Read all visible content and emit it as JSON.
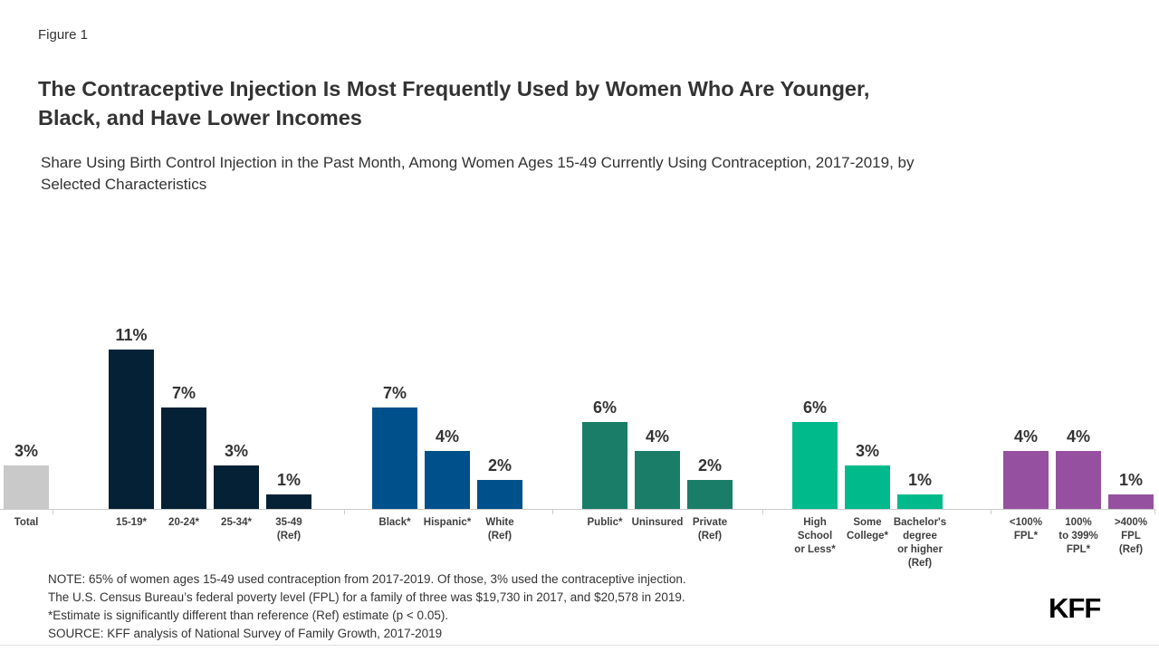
{
  "figure_label": "Figure 1",
  "title_lines": [
    "The Contraceptive Injection Is Most Frequently Used by Women Who Are Younger,",
    "Black, and Have Lower Incomes"
  ],
  "subtitle_lines": [
    "Share Using Birth Control Injection in the Past Month, Among Women Ages 15-49 Currently Using Contraception, 2017-2019, by",
    "Selected Characteristics"
  ],
  "chart_data": {
    "type": "bar",
    "unit": "%",
    "ylim": [
      0,
      12
    ],
    "grid": false,
    "value_labels": true,
    "axis_color": "#cccccc",
    "groups": [
      {
        "color": "#c9c9c9",
        "bars": [
          {
            "label_lines": [
              "Total"
            ],
            "value": 3,
            "display": "3%"
          }
        ]
      },
      {
        "color": "#042135",
        "bars": [
          {
            "label_lines": [
              "15-19*"
            ],
            "value": 11,
            "display": "11%"
          },
          {
            "label_lines": [
              "20-24*"
            ],
            "value": 7,
            "display": "7%"
          },
          {
            "label_lines": [
              "25-34*"
            ],
            "value": 3,
            "display": "3%"
          },
          {
            "label_lines": [
              "35-49",
              "(Ref)"
            ],
            "value": 1,
            "display": "1%"
          }
        ]
      },
      {
        "color": "#00508c",
        "bars": [
          {
            "label_lines": [
              "Black*"
            ],
            "value": 7,
            "display": "7%"
          },
          {
            "label_lines": [
              "Hispanic*"
            ],
            "value": 4,
            "display": "4%"
          },
          {
            "label_lines": [
              "White",
              "(Ref)"
            ],
            "value": 2,
            "display": "2%"
          }
        ]
      },
      {
        "color": "#1a7d68",
        "bars": [
          {
            "label_lines": [
              "Public*"
            ],
            "value": 6,
            "display": "6%"
          },
          {
            "label_lines": [
              "Uninsured"
            ],
            "value": 4,
            "display": "4%"
          },
          {
            "label_lines": [
              "Private",
              "(Ref)"
            ],
            "value": 2,
            "display": "2%"
          }
        ]
      },
      {
        "color": "#00ba8b",
        "bars": [
          {
            "label_lines": [
              "High",
              "School",
              "or Less*"
            ],
            "value": 6,
            "display": "6%"
          },
          {
            "label_lines": [
              "Some",
              "College*"
            ],
            "value": 3,
            "display": "3%"
          },
          {
            "label_lines": [
              "Bachelor's",
              "degree",
              "or higher",
              "(Ref)"
            ],
            "value": 1,
            "display": "1%"
          }
        ]
      },
      {
        "color": "#95519f",
        "bars": [
          {
            "label_lines": [
              "<100%",
              "FPL*"
            ],
            "value": 4,
            "display": "4%"
          },
          {
            "label_lines": [
              "100%",
              "to 399%",
              "FPL*"
            ],
            "value": 4,
            "display": "4%"
          },
          {
            "label_lines": [
              ">400%",
              "FPL",
              "(Ref)"
            ],
            "value": 1,
            "display": "1%"
          }
        ]
      }
    ]
  },
  "notes": {
    "lines": [
      "NOTE: 65% of women ages 15-49 used contraception from 2017-2019. Of those, 3% used the contraceptive injection.",
      "The U.S. Census Bureau’s federal poverty level (FPL) for a family of three was $19,730 in 2017, and $20,578 in 2019.",
      "*Estimate is significantly different than reference (Ref) estimate (p < 0.05).",
      "SOURCE: KFF analysis of National Survey of Family Growth, 2017-2019"
    ]
  },
  "logo": "KFF"
}
